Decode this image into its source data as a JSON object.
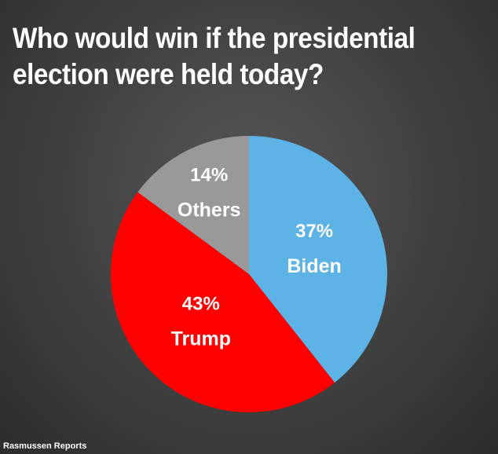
{
  "chart_data": {
    "type": "pie",
    "title": "Who would win if the presidential election were held today?",
    "slices": [
      {
        "label": "Biden",
        "value": 37,
        "display": "37%",
        "color": "#5db3e6"
      },
      {
        "label": "Trump",
        "value": 43,
        "display": "43%",
        "color": "#ff0000"
      },
      {
        "label": "Others",
        "value": 14,
        "display": "14%",
        "color": "#999999"
      }
    ],
    "start": "12 o'clock",
    "direction": "clockwise",
    "legend": "none"
  },
  "source": "Rasmussen Reports"
}
